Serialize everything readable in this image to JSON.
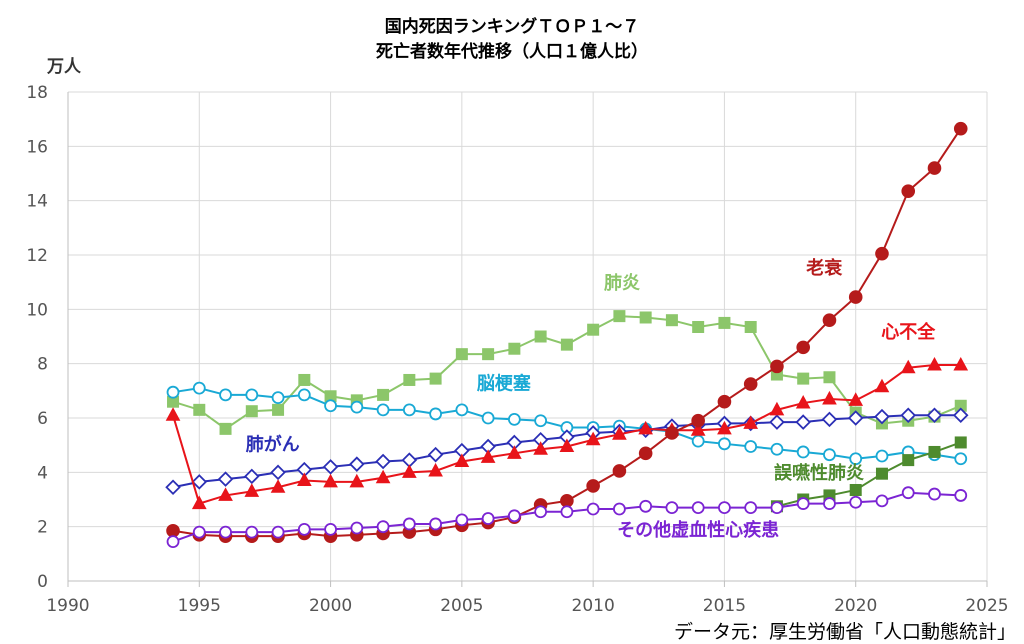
{
  "chart_data": {
    "type": "line",
    "title": "国内死因ランキングＴＯＰ１～７",
    "subtitle": "死亡者数年代推移（人口１億人比）",
    "ylabel": "万人",
    "xlim": [
      1990,
      2025
    ],
    "ylim": [
      0,
      18
    ],
    "xticks": [
      "1990",
      "1995",
      "2000",
      "2005",
      "2010",
      "2015",
      "2020",
      "2025"
    ],
    "yticks": [
      "0",
      "2",
      "4",
      "6",
      "8",
      "10",
      "12",
      "14",
      "16",
      "18"
    ],
    "grid": true,
    "source": "データ元：厚生労働省「人口動態統計」",
    "series": [
      {
        "name": "肺炎",
        "color": "#8cc66a",
        "marker": "square-filled",
        "x": [
          1994,
          1995,
          1996,
          1997,
          1998,
          1999,
          2000,
          2001,
          2002,
          2003,
          2004,
          2005,
          2006,
          2007,
          2008,
          2009,
          2010,
          2011,
          2012,
          2013,
          2014,
          2015,
          2016,
          2017,
          2018,
          2019,
          2020,
          2021,
          2022,
          2023,
          2024
        ],
        "values": [
          6.6,
          6.3,
          5.6,
          6.25,
          6.3,
          7.4,
          6.8,
          6.65,
          6.85,
          7.4,
          7.45,
          8.35,
          8.35,
          8.55,
          9.0,
          8.7,
          9.25,
          9.75,
          9.7,
          9.6,
          9.35,
          9.5,
          9.35,
          7.6,
          7.45,
          7.5,
          6.2,
          5.8,
          5.9,
          6.05,
          6.45
        ]
      },
      {
        "name": "脳梗塞",
        "color": "#19a9d5",
        "marker": "circle-open",
        "x": [
          1994,
          1995,
          1996,
          1997,
          1998,
          1999,
          2000,
          2001,
          2002,
          2003,
          2004,
          2005,
          2006,
          2007,
          2008,
          2009,
          2010,
          2011,
          2012,
          2013,
          2014,
          2015,
          2016,
          2017,
          2018,
          2019,
          2020,
          2021,
          2022,
          2023,
          2024
        ],
        "values": [
          6.95,
          7.1,
          6.85,
          6.85,
          6.75,
          6.85,
          6.45,
          6.4,
          6.3,
          6.3,
          6.15,
          6.3,
          6.0,
          5.95,
          5.9,
          5.65,
          5.65,
          5.7,
          5.6,
          5.5,
          5.15,
          5.05,
          4.95,
          4.85,
          4.75,
          4.65,
          4.5,
          4.6,
          4.75,
          4.65,
          4.5
        ]
      },
      {
        "name": "肺がん",
        "color": "#2b2fb5",
        "marker": "diamond-open",
        "x": [
          1994,
          1995,
          1996,
          1997,
          1998,
          1999,
          2000,
          2001,
          2002,
          2003,
          2004,
          2005,
          2006,
          2007,
          2008,
          2009,
          2010,
          2011,
          2012,
          2013,
          2014,
          2015,
          2016,
          2017,
          2018,
          2019,
          2020,
          2021,
          2022,
          2023,
          2024
        ],
        "values": [
          3.45,
          3.65,
          3.75,
          3.85,
          4.0,
          4.1,
          4.2,
          4.3,
          4.4,
          4.45,
          4.65,
          4.8,
          4.95,
          5.1,
          5.2,
          5.3,
          5.45,
          5.5,
          5.55,
          5.7,
          5.75,
          5.8,
          5.8,
          5.85,
          5.85,
          5.95,
          6.0,
          6.05,
          6.1,
          6.1,
          6.1
        ]
      },
      {
        "name": "心不全",
        "color": "#e8141a",
        "marker": "triangle-filled",
        "x": [
          1994,
          1995,
          1996,
          1997,
          1998,
          1999,
          2000,
          2001,
          2002,
          2003,
          2004,
          2005,
          2006,
          2007,
          2008,
          2009,
          2010,
          2011,
          2012,
          2013,
          2014,
          2015,
          2016,
          2017,
          2018,
          2019,
          2020,
          2021,
          2022,
          2023,
          2024
        ],
        "values": [
          6.1,
          2.85,
          3.15,
          3.3,
          3.45,
          3.7,
          3.65,
          3.65,
          3.8,
          4.0,
          4.05,
          4.4,
          4.55,
          4.7,
          4.85,
          4.95,
          5.2,
          5.4,
          5.6,
          5.55,
          5.55,
          5.6,
          5.8,
          6.3,
          6.55,
          6.7,
          6.65,
          7.15,
          7.85,
          7.95,
          7.95
        ]
      },
      {
        "name": "老衰",
        "color": "#b51b1b",
        "marker": "circle-filled",
        "x": [
          1994,
          1995,
          1996,
          1997,
          1998,
          1999,
          2000,
          2001,
          2002,
          2003,
          2004,
          2005,
          2006,
          2007,
          2008,
          2009,
          2010,
          2011,
          2012,
          2013,
          2014,
          2015,
          2016,
          2017,
          2018,
          2019,
          2020,
          2021,
          2022,
          2023,
          2024
        ],
        "values": [
          1.85,
          1.7,
          1.65,
          1.65,
          1.65,
          1.75,
          1.65,
          1.7,
          1.75,
          1.8,
          1.9,
          2.05,
          2.15,
          2.35,
          2.8,
          2.95,
          3.5,
          4.05,
          4.7,
          5.45,
          5.9,
          6.6,
          7.25,
          7.9,
          8.6,
          9.6,
          10.45,
          12.05,
          14.35,
          15.2,
          16.65
        ]
      },
      {
        "name": "誤嚥性肺炎",
        "color": "#4e8b2e",
        "marker": "square-filled",
        "x": [
          2017,
          2018,
          2019,
          2020,
          2021,
          2022,
          2023,
          2024
        ],
        "values": [
          2.75,
          3.0,
          3.15,
          3.35,
          3.95,
          4.45,
          4.75,
          5.1
        ]
      },
      {
        "name": "その他虚血性心疾患",
        "color": "#7b24d3",
        "marker": "circle-open",
        "x": [
          1994,
          1995,
          1996,
          1997,
          1998,
          1999,
          2000,
          2001,
          2002,
          2003,
          2004,
          2005,
          2006,
          2007,
          2008,
          2009,
          2010,
          2011,
          2012,
          2013,
          2014,
          2015,
          2016,
          2017,
          2018,
          2019,
          2020,
          2021,
          2022,
          2023,
          2024
        ],
        "values": [
          1.45,
          1.8,
          1.8,
          1.8,
          1.8,
          1.9,
          1.9,
          1.95,
          2.0,
          2.1,
          2.1,
          2.25,
          2.3,
          2.4,
          2.55,
          2.55,
          2.65,
          2.65,
          2.75,
          2.7,
          2.7,
          2.7,
          2.7,
          2.7,
          2.85,
          2.85,
          2.9,
          2.95,
          3.25,
          3.2,
          3.15
        ]
      }
    ],
    "annotations": [
      {
        "text": "肺炎",
        "series": "肺炎",
        "x": 2011.1,
        "y": 10.75,
        "color": "#8cc66a"
      },
      {
        "text": "老衰",
        "series": "老衰",
        "x": 2018.8,
        "y": 11.3,
        "color": "#b51b1b"
      },
      {
        "text": "心不全",
        "series": "心不全",
        "x": 2022.0,
        "y": 8.95,
        "color": "#e8141a"
      },
      {
        "text": "脳梗塞",
        "series": "脳梗塞",
        "x": 2006.6,
        "y": 7.05,
        "color": "#19a9d5"
      },
      {
        "text": "肺がん",
        "series": "肺がん",
        "x": 1997.8,
        "y": 4.8,
        "color": "#2b2fb5"
      },
      {
        "text": "誤嚥性肺炎",
        "series": "誤嚥性肺炎",
        "x": 2018.6,
        "y": 3.75,
        "color": "#4e8b2e"
      },
      {
        "text": "その他虚血性心疾患",
        "series": "その他虚血性心疾患",
        "x": 2014.0,
        "y": 1.65,
        "color": "#7b24d3"
      }
    ]
  }
}
